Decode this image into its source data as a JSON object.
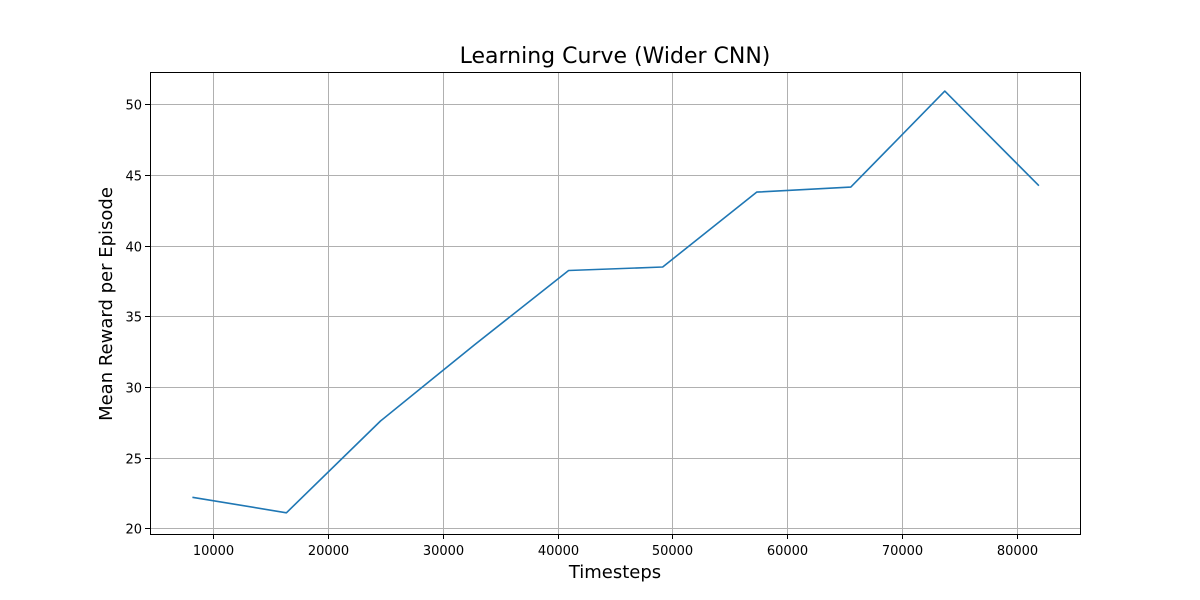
{
  "chart_data": {
    "type": "line",
    "title": "Learning Curve (Wider CNN)",
    "xlabel": "Timesteps",
    "ylabel": "Mean Reward per Episode",
    "xlim": [
      4500,
      85500
    ],
    "ylim": [
      19.6,
      52.3
    ],
    "x_ticks": [
      10000,
      20000,
      30000,
      40000,
      50000,
      60000,
      70000,
      80000
    ],
    "y_ticks": [
      20,
      25,
      30,
      35,
      40,
      45,
      50
    ],
    "grid": true,
    "series": [
      {
        "color": "#1f77b4",
        "x": [
          8192,
          16384,
          24576,
          32768,
          40960,
          49152,
          57344,
          65536,
          73728,
          81920
        ],
        "y": [
          22.2,
          21.1,
          27.6,
          33.0,
          38.25,
          38.5,
          43.8,
          44.15,
          50.95,
          44.25
        ]
      }
    ]
  }
}
